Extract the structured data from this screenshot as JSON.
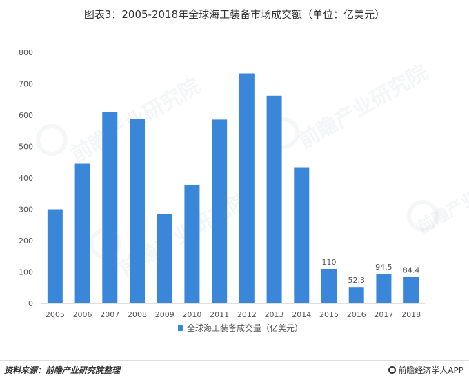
{
  "title": "图表3：2005-2018年全球海工装备市场成交额（单位：亿美元）",
  "source": "资料来源：前瞻产业研究院整理",
  "brand": "前瞻经济学人APP",
  "watermark": "前瞻产业研究院",
  "colors": {
    "bar": "#3a87d9",
    "axis": "#bfbfbf",
    "text": "#555555",
    "watermark": "#cfd6dc"
  },
  "chart_data": {
    "type": "bar",
    "title": "图表3：2005-2018年全球海工装备市场成交额（单位：亿美元）",
    "xlabel": "",
    "ylabel": "",
    "categories": [
      "2005",
      "2006",
      "2007",
      "2008",
      "2009",
      "2010",
      "2011",
      "2012",
      "2013",
      "2014",
      "2015",
      "2016",
      "2017",
      "2018"
    ],
    "series": [
      {
        "name": "全球海工装备成交量（亿美元）",
        "values": [
          300,
          445,
          610,
          588,
          285,
          376,
          586,
          733,
          662,
          434,
          110,
          52.3,
          94.5,
          84.4
        ]
      }
    ],
    "data_labels": {
      "10": "110",
      "11": "52.3",
      "12": "94.5",
      "13": "84.4"
    },
    "ylim": [
      0,
      800
    ],
    "yticks": [
      0,
      100,
      200,
      300,
      400,
      500,
      600,
      700,
      800
    ],
    "grid": false,
    "legend": "bottom"
  }
}
